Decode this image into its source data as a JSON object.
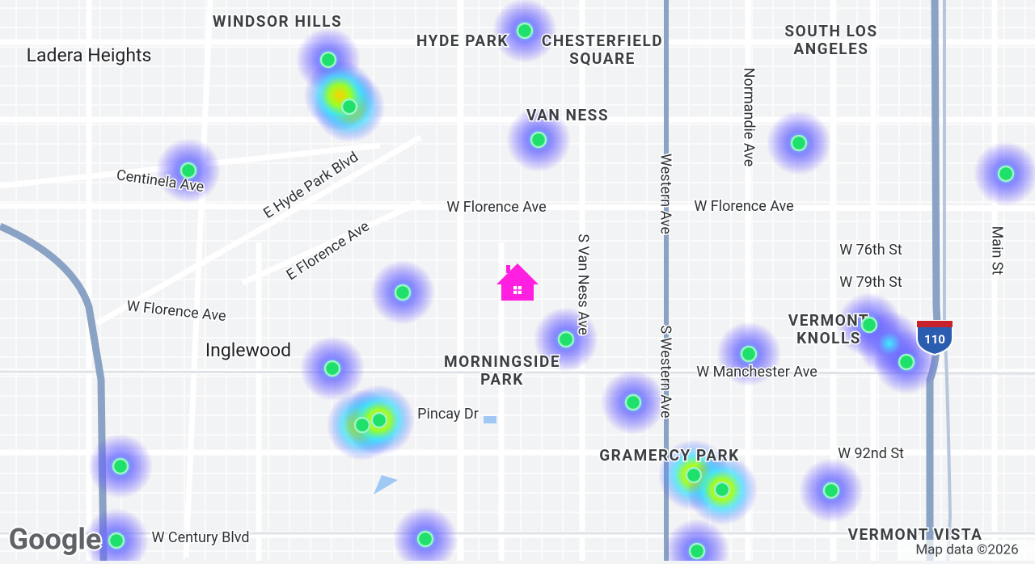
{
  "places": [
    [
      "WINDSOR HILLS"
    ],
    [
      "Ladera Heights"
    ],
    [
      "HYDE PARK"
    ],
    [
      "CHESTERFIELD",
      "SQUARE"
    ],
    [
      "SOUTH LOS",
      "ANGELES"
    ],
    [
      "VAN NESS"
    ],
    [
      "Inglewood"
    ],
    [
      "MORNINGSIDE",
      "PARK"
    ],
    [
      "VERMONT",
      "KNOLLS"
    ],
    [
      "GRAMERCY PARK"
    ],
    [
      "VERMONT VISTA"
    ]
  ],
  "streets": [
    "Normandie Ave",
    "Centinela Ave",
    "E Hyde Park Blvd",
    "W Florence Ave",
    "W Florence Ave",
    "Western Ave",
    "S Van Ness Ave",
    "E Florence Ave",
    "W 76th St",
    "W 79th St",
    "Main St",
    "W Florence Ave",
    "W Manchester Ave",
    "S Western Ave",
    "Pincay Dr",
    "W 92nd St",
    "W Century Blvd"
  ],
  "highway_shield": "110",
  "logo": "Google",
  "attribution": "Map data ©2026"
}
